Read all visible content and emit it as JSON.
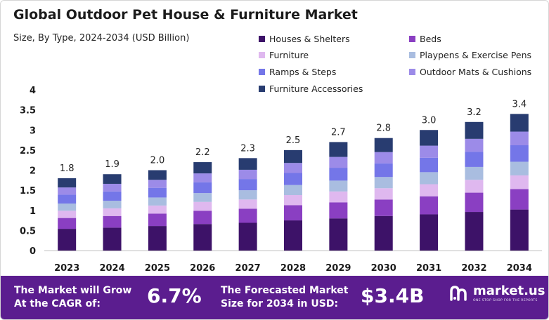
{
  "header": {
    "title": "Global Outdoor Pet House & Furniture Market",
    "subtitle": "Size, By Type, 2024-2034 (USD Billion)"
  },
  "colors": {
    "houses_shelters": "#3d1268",
    "beds": "#8a3fc2",
    "furniture": "#dfb8ef",
    "playpens": "#a9bde0",
    "ramps": "#7476e8",
    "mats": "#9c8be8",
    "accessories": "#283c70",
    "footer_bg": "#5b1d8f",
    "axis": "#bdbdbd"
  },
  "legend": [
    {
      "label": "Houses & Shelters",
      "icon": "square-swatch"
    },
    {
      "label": "Beds",
      "icon": "square-swatch"
    },
    {
      "label": "Furniture",
      "icon": "square-swatch"
    },
    {
      "label": "Playpens & Exercise Pens",
      "icon": "square-swatch"
    },
    {
      "label": "Ramps & Steps",
      "icon": "square-swatch"
    },
    {
      "label": "Outdoor Mats & Cushions",
      "icon": "square-swatch"
    },
    {
      "label": "Furniture Accessories",
      "icon": "square-swatch"
    }
  ],
  "chart_data": {
    "type": "bar",
    "stacked": true,
    "title": "Global Outdoor Pet House & Furniture Market",
    "subtitle": "Size, By Type, 2024-2034 (USD Billion)",
    "xlabel": "",
    "ylabel": "",
    "ylim": [
      0,
      4
    ],
    "yticks": [
      "0",
      "0.5",
      "1",
      "1.5",
      "2",
      "2.5",
      "3",
      "3.5",
      "4"
    ],
    "grid": false,
    "legend_position": "top-right",
    "categories": [
      "2023",
      "2024",
      "2025",
      "2026",
      "2027",
      "2028",
      "2029",
      "2030",
      "2031",
      "2032",
      "2034"
    ],
    "totals": [
      1.8,
      1.9,
      2.0,
      2.2,
      2.3,
      2.5,
      2.7,
      2.8,
      3.0,
      3.2,
      3.4
    ],
    "total_labels": [
      "1.8",
      "1.9",
      "2.0",
      "2.2",
      "2.3",
      "2.5",
      "2.7",
      "2.8",
      "3.0",
      "3.2",
      "3.4"
    ],
    "series": [
      {
        "name": "Houses & Shelters",
        "values": [
          0.54,
          0.57,
          0.61,
          0.66,
          0.69,
          0.75,
          0.8,
          0.86,
          0.9,
          0.96,
          1.02
        ]
      },
      {
        "name": "Beds",
        "values": [
          0.27,
          0.29,
          0.31,
          0.33,
          0.35,
          0.38,
          0.4,
          0.41,
          0.45,
          0.48,
          0.51
        ]
      },
      {
        "name": "Furniture",
        "values": [
          0.18,
          0.19,
          0.2,
          0.22,
          0.23,
          0.25,
          0.27,
          0.28,
          0.3,
          0.32,
          0.34
        ]
      },
      {
        "name": "Playpens & Exercise Pens",
        "values": [
          0.18,
          0.19,
          0.2,
          0.22,
          0.23,
          0.25,
          0.27,
          0.28,
          0.3,
          0.32,
          0.34
        ]
      },
      {
        "name": "Ramps & Steps",
        "values": [
          0.22,
          0.23,
          0.24,
          0.27,
          0.28,
          0.3,
          0.32,
          0.34,
          0.36,
          0.38,
          0.41
        ]
      },
      {
        "name": "Outdoor Mats & Cushions",
        "values": [
          0.18,
          0.19,
          0.2,
          0.22,
          0.23,
          0.25,
          0.27,
          0.28,
          0.3,
          0.32,
          0.34
        ]
      },
      {
        "name": "Furniture Accessories",
        "values": [
          0.23,
          0.24,
          0.24,
          0.28,
          0.29,
          0.32,
          0.37,
          0.35,
          0.39,
          0.42,
          0.44
        ]
      }
    ]
  },
  "footer": {
    "cagr_text_line1": "The Market will Grow",
    "cagr_text_line2": "At the CAGR of:",
    "cagr_value": "6.7%",
    "forecast_text_line1": "The Forecasted Market",
    "forecast_text_line2": "Size for 2034 in USD:",
    "forecast_value": "$3.4B",
    "brand_name": "market.us",
    "brand_tagline": "ONE STOP SHOP FOR THE REPORTS",
    "brand_icon": "market-us-logo-icon"
  }
}
